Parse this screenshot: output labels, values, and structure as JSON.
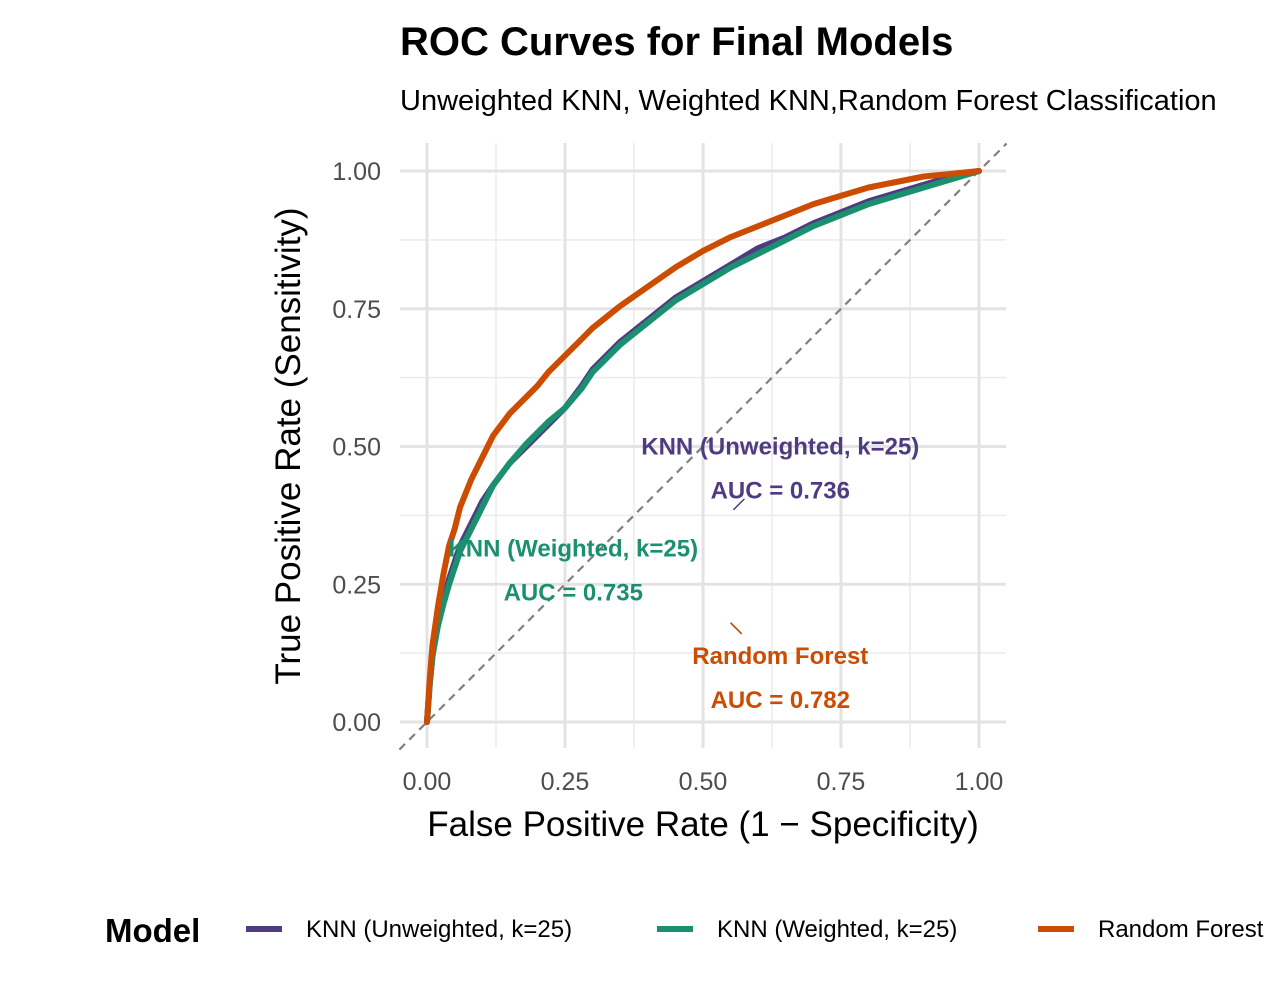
{
  "chart_data": {
    "type": "line",
    "title": "ROC Curves for Final Models",
    "subtitle": "Unweighted KNN, Weighted KNN,Random Forest Classification",
    "xlabel": "False Positive Rate (1 − Specificity)",
    "ylabel": "True Positive Rate (Sensitivity)",
    "xlim": [
      0,
      1
    ],
    "ylim": [
      0,
      1
    ],
    "x_ticks": [
      "0.00",
      "0.25",
      "0.50",
      "0.75",
      "1.00"
    ],
    "y_ticks": [
      "0.00",
      "0.25",
      "0.50",
      "0.75",
      "1.00"
    ],
    "grid": true,
    "reference_line": "diagonal, dashed, grey",
    "legend": {
      "title": "Model",
      "position": "bottom"
    },
    "series": [
      {
        "name": "KNN (Unweighted, k=25)",
        "color": "#4e3b80",
        "auc_label": "AUC = 0.736",
        "x": [
          0,
          0.005,
          0.01,
          0.02,
          0.03,
          0.04,
          0.05,
          0.06,
          0.08,
          0.1,
          0.12,
          0.15,
          0.18,
          0.2,
          0.22,
          0.25,
          0.28,
          0.3,
          0.35,
          0.4,
          0.45,
          0.5,
          0.55,
          0.6,
          0.65,
          0.7,
          0.75,
          0.8,
          0.85,
          0.9,
          0.95,
          1.0
        ],
        "y": [
          0,
          0.07,
          0.12,
          0.18,
          0.22,
          0.26,
          0.29,
          0.32,
          0.36,
          0.4,
          0.43,
          0.47,
          0.5,
          0.52,
          0.54,
          0.57,
          0.61,
          0.64,
          0.69,
          0.73,
          0.77,
          0.8,
          0.83,
          0.86,
          0.88,
          0.905,
          0.925,
          0.945,
          0.96,
          0.975,
          0.99,
          1.0
        ]
      },
      {
        "name": "KNN (Weighted, k=25)",
        "color": "#1b9070",
        "auc_label": "AUC = 0.735",
        "x": [
          0,
          0.005,
          0.01,
          0.02,
          0.03,
          0.04,
          0.05,
          0.06,
          0.08,
          0.1,
          0.12,
          0.15,
          0.18,
          0.2,
          0.22,
          0.25,
          0.28,
          0.3,
          0.35,
          0.4,
          0.45,
          0.5,
          0.55,
          0.6,
          0.65,
          0.7,
          0.75,
          0.8,
          0.85,
          0.9,
          0.95,
          1.0
        ],
        "y": [
          0,
          0.07,
          0.12,
          0.175,
          0.215,
          0.25,
          0.28,
          0.31,
          0.35,
          0.39,
          0.43,
          0.47,
          0.505,
          0.525,
          0.545,
          0.57,
          0.605,
          0.635,
          0.685,
          0.725,
          0.765,
          0.795,
          0.825,
          0.85,
          0.875,
          0.9,
          0.92,
          0.94,
          0.955,
          0.97,
          0.985,
          1.0
        ]
      },
      {
        "name": "Random Forest",
        "color": "#cc4c02",
        "auc_label": "AUC = 0.782",
        "x": [
          0,
          0.005,
          0.01,
          0.02,
          0.03,
          0.04,
          0.05,
          0.06,
          0.08,
          0.1,
          0.12,
          0.15,
          0.18,
          0.2,
          0.22,
          0.25,
          0.28,
          0.3,
          0.35,
          0.4,
          0.45,
          0.5,
          0.55,
          0.6,
          0.65,
          0.7,
          0.75,
          0.8,
          0.85,
          0.9,
          0.95,
          1.0
        ],
        "y": [
          0,
          0.08,
          0.14,
          0.21,
          0.27,
          0.32,
          0.35,
          0.39,
          0.44,
          0.48,
          0.52,
          0.56,
          0.59,
          0.61,
          0.635,
          0.665,
          0.695,
          0.715,
          0.755,
          0.79,
          0.825,
          0.855,
          0.88,
          0.9,
          0.92,
          0.94,
          0.955,
          0.97,
          0.98,
          0.99,
          0.995,
          1.0
        ]
      }
    ],
    "annotations": [
      {
        "series": 0,
        "label": "KNN (Unweighted, k=25)",
        "auc": "AUC = 0.736",
        "x": 0.64,
        "y": 0.5,
        "line_from": [
          0.555,
          0.385
        ],
        "line_to": [
          0.575,
          0.405
        ]
      },
      {
        "series": 1,
        "label": "KNN (Weighted, k=25)",
        "auc": "AUC = 0.735",
        "x": 0.265,
        "y": 0.315,
        "line_from": [
          0.55,
          0.18
        ],
        "line_to": [
          0.57,
          0.16
        ]
      },
      {
        "series": 2,
        "label": "Random Forest",
        "auc": "AUC = 0.782",
        "x": 0.64,
        "y": 0.12,
        "line_from": [
          0.55,
          0.18
        ],
        "line_to": [
          0.57,
          0.16
        ]
      }
    ]
  }
}
